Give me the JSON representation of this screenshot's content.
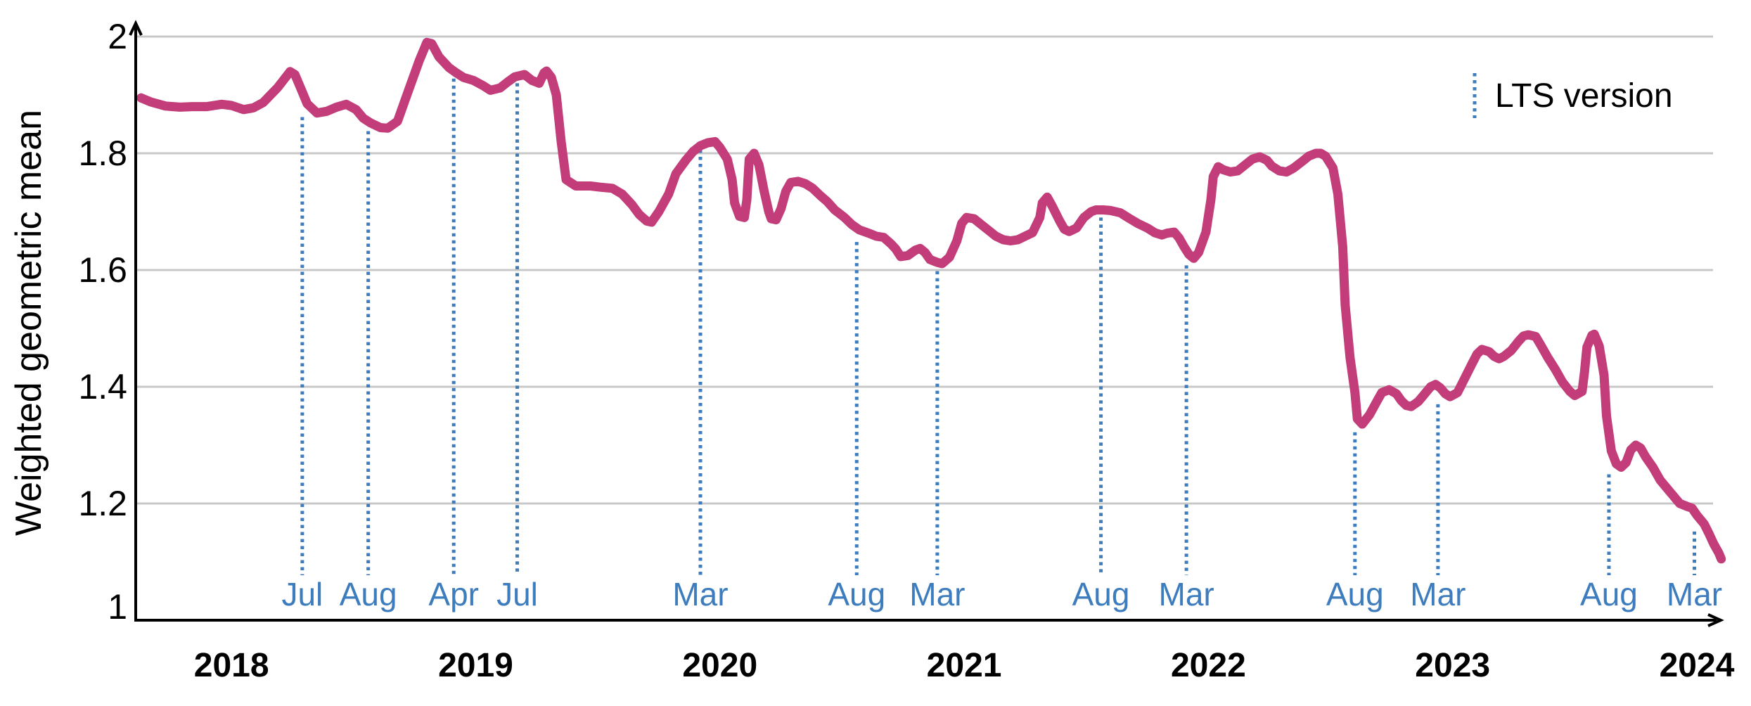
{
  "legend": {
    "label": "LTS version"
  },
  "y_axis": {
    "title": "Weighted geometric mean"
  },
  "colors": {
    "line": "#c23d79",
    "lts_blue": "#3d7cbd",
    "grid": "#c8c8c8",
    "axis": "#000000",
    "text": "#000000"
  },
  "chart_data": {
    "type": "line",
    "title": "",
    "ylabel": "Weighted geometric mean",
    "xlabel": "",
    "grid": "horizontal",
    "legend_position": "top-right",
    "xlim": [
      2017.608,
      2024.095
    ],
    "ylim": [
      1.0,
      2.0193
    ],
    "gridlines_y": [
      1.2,
      1.4,
      1.6,
      1.8,
      2.0
    ],
    "y_ticks": [
      {
        "label": "2",
        "value": 2.0
      },
      {
        "label": "1.8",
        "value": 1.8
      },
      {
        "label": "1.6",
        "value": 1.6
      },
      {
        "label": "1.4",
        "value": 1.4
      },
      {
        "label": "1.2",
        "value": 1.2
      },
      {
        "label": "1",
        "value": 1.0
      }
    ],
    "x_ticks": [
      {
        "label": "2018",
        "x": 2018
      },
      {
        "label": "2019",
        "x": 2019
      },
      {
        "label": "2020",
        "x": 2020
      },
      {
        "label": "2021",
        "x": 2021
      },
      {
        "label": "2022",
        "x": 2022
      },
      {
        "label": "2023",
        "x": 2023
      },
      {
        "label": "2024",
        "x": 2024
      }
    ],
    "lts_markers": [
      {
        "label": "Jul",
        "x": 2018.29,
        "top": 1.862
      },
      {
        "label": "Aug",
        "x": 2018.56,
        "top": 1.838
      },
      {
        "label": "Apr",
        "x": 2018.91,
        "top": 1.928
      },
      {
        "label": "Jul",
        "x": 2019.17,
        "top": 1.92
      },
      {
        "label": "Mar",
        "x": 2019.92,
        "top": 1.806
      },
      {
        "label": "Aug",
        "x": 2020.56,
        "top": 1.648
      },
      {
        "label": "Mar",
        "x": 2020.89,
        "top": 1.598
      },
      {
        "label": "Aug",
        "x": 2021.56,
        "top": 1.69
      },
      {
        "label": "Mar",
        "x": 2021.91,
        "top": 1.608
      },
      {
        "label": "Aug",
        "x": 2022.6,
        "top": 1.322
      },
      {
        "label": "Mar",
        "x": 2022.94,
        "top": 1.37
      },
      {
        "label": "Aug",
        "x": 2023.64,
        "top": 1.25
      },
      {
        "label": "Mar",
        "x": 2023.99,
        "top": 1.152
      }
    ],
    "series": [
      {
        "name": "Weighted geometric mean",
        "points": [
          [
            2017.63,
            1.895
          ],
          [
            2017.67,
            1.888
          ],
          [
            2017.73,
            1.881
          ],
          [
            2017.79,
            1.879
          ],
          [
            2017.84,
            1.88
          ],
          [
            2017.9,
            1.88
          ],
          [
            2017.96,
            1.884
          ],
          [
            2018.0,
            1.882
          ],
          [
            2018.05,
            1.875
          ],
          [
            2018.09,
            1.878
          ],
          [
            2018.13,
            1.887
          ],
          [
            2018.19,
            1.913
          ],
          [
            2018.24,
            1.94
          ],
          [
            2018.26,
            1.935
          ],
          [
            2018.29,
            1.905
          ],
          [
            2018.31,
            1.885
          ],
          [
            2018.35,
            1.869
          ],
          [
            2018.39,
            1.872
          ],
          [
            2018.43,
            1.879
          ],
          [
            2018.47,
            1.884
          ],
          [
            2018.51,
            1.875
          ],
          [
            2018.54,
            1.86
          ],
          [
            2018.57,
            1.852
          ],
          [
            2018.61,
            1.844
          ],
          [
            2018.64,
            1.843
          ],
          [
            2018.68,
            1.855
          ],
          [
            2018.72,
            1.902
          ],
          [
            2018.77,
            1.96
          ],
          [
            2018.8,
            1.99
          ],
          [
            2018.82,
            1.988
          ],
          [
            2018.85,
            1.965
          ],
          [
            2018.89,
            1.947
          ],
          [
            2018.92,
            1.938
          ],
          [
            2018.95,
            1.93
          ],
          [
            2018.99,
            1.925
          ],
          [
            2019.03,
            1.916
          ],
          [
            2019.06,
            1.908
          ],
          [
            2019.1,
            1.912
          ],
          [
            2019.13,
            1.922
          ],
          [
            2019.16,
            1.931
          ],
          [
            2019.2,
            1.935
          ],
          [
            2019.23,
            1.925
          ],
          [
            2019.26,
            1.92
          ],
          [
            2019.28,
            1.938
          ],
          [
            2019.29,
            1.941
          ],
          [
            2019.31,
            1.93
          ],
          [
            2019.33,
            1.9
          ],
          [
            2019.35,
            1.82
          ],
          [
            2019.37,
            1.755
          ],
          [
            2019.41,
            1.744
          ],
          [
            2019.47,
            1.744
          ],
          [
            2019.51,
            1.742
          ],
          [
            2019.56,
            1.74
          ],
          [
            2019.6,
            1.73
          ],
          [
            2019.64,
            1.712
          ],
          [
            2019.67,
            1.695
          ],
          [
            2019.7,
            1.684
          ],
          [
            2019.72,
            1.682
          ],
          [
            2019.75,
            1.7
          ],
          [
            2019.79,
            1.73
          ],
          [
            2019.82,
            1.765
          ],
          [
            2019.86,
            1.788
          ],
          [
            2019.89,
            1.803
          ],
          [
            2019.92,
            1.813
          ],
          [
            2019.95,
            1.818
          ],
          [
            2019.98,
            1.82
          ],
          [
            2020.0,
            1.81
          ],
          [
            2020.03,
            1.79
          ],
          [
            2020.05,
            1.755
          ],
          [
            2020.06,
            1.715
          ],
          [
            2020.08,
            1.692
          ],
          [
            2020.1,
            1.69
          ],
          [
            2020.11,
            1.72
          ],
          [
            2020.12,
            1.79
          ],
          [
            2020.14,
            1.8
          ],
          [
            2020.16,
            1.78
          ],
          [
            2020.18,
            1.737
          ],
          [
            2020.2,
            1.7
          ],
          [
            2020.21,
            1.688
          ],
          [
            2020.23,
            1.686
          ],
          [
            2020.25,
            1.705
          ],
          [
            2020.27,
            1.735
          ],
          [
            2020.29,
            1.75
          ],
          [
            2020.32,
            1.752
          ],
          [
            2020.35,
            1.748
          ],
          [
            2020.38,
            1.74
          ],
          [
            2020.41,
            1.728
          ],
          [
            2020.44,
            1.717
          ],
          [
            2020.47,
            1.703
          ],
          [
            2020.51,
            1.69
          ],
          [
            2020.54,
            1.678
          ],
          [
            2020.57,
            1.669
          ],
          [
            2020.61,
            1.663
          ],
          [
            2020.64,
            1.658
          ],
          [
            2020.67,
            1.656
          ],
          [
            2020.7,
            1.645
          ],
          [
            2020.72,
            1.636
          ],
          [
            2020.74,
            1.623
          ],
          [
            2020.77,
            1.625
          ],
          [
            2020.8,
            1.634
          ],
          [
            2020.82,
            1.637
          ],
          [
            2020.84,
            1.63
          ],
          [
            2020.86,
            1.618
          ],
          [
            2020.89,
            1.613
          ],
          [
            2020.91,
            1.611
          ],
          [
            2020.94,
            1.622
          ],
          [
            2020.97,
            1.65
          ],
          [
            2020.99,
            1.68
          ],
          [
            2021.01,
            1.69
          ],
          [
            2021.04,
            1.688
          ],
          [
            2021.07,
            1.678
          ],
          [
            2021.1,
            1.668
          ],
          [
            2021.13,
            1.658
          ],
          [
            2021.16,
            1.652
          ],
          [
            2021.19,
            1.65
          ],
          [
            2021.22,
            1.652
          ],
          [
            2021.25,
            1.658
          ],
          [
            2021.28,
            1.664
          ],
          [
            2021.31,
            1.69
          ],
          [
            2021.32,
            1.715
          ],
          [
            2021.34,
            1.725
          ],
          [
            2021.36,
            1.71
          ],
          [
            2021.39,
            1.685
          ],
          [
            2021.41,
            1.67
          ],
          [
            2021.43,
            1.666
          ],
          [
            2021.46,
            1.672
          ],
          [
            2021.49,
            1.69
          ],
          [
            2021.52,
            1.7
          ],
          [
            2021.54,
            1.703
          ],
          [
            2021.57,
            1.703
          ],
          [
            2021.6,
            1.702
          ],
          [
            2021.64,
            1.698
          ],
          [
            2021.67,
            1.69
          ],
          [
            2021.71,
            1.68
          ],
          [
            2021.75,
            1.672
          ],
          [
            2021.78,
            1.664
          ],
          [
            2021.81,
            1.66
          ],
          [
            2021.83,
            1.663
          ],
          [
            2021.86,
            1.665
          ],
          [
            2021.88,
            1.655
          ],
          [
            2021.9,
            1.64
          ],
          [
            2021.92,
            1.627
          ],
          [
            2021.94,
            1.62
          ],
          [
            2021.96,
            1.63
          ],
          [
            2021.99,
            1.665
          ],
          [
            2022.01,
            1.72
          ],
          [
            2022.02,
            1.76
          ],
          [
            2022.04,
            1.777
          ],
          [
            2022.06,
            1.772
          ],
          [
            2022.09,
            1.768
          ],
          [
            2022.12,
            1.77
          ],
          [
            2022.15,
            1.78
          ],
          [
            2022.18,
            1.79
          ],
          [
            2022.21,
            1.794
          ],
          [
            2022.24,
            1.788
          ],
          [
            2022.26,
            1.778
          ],
          [
            2022.29,
            1.77
          ],
          [
            2022.32,
            1.768
          ],
          [
            2022.35,
            1.775
          ],
          [
            2022.39,
            1.788
          ],
          [
            2022.41,
            1.795
          ],
          [
            2022.44,
            1.8
          ],
          [
            2022.46,
            1.8
          ],
          [
            2022.48,
            1.795
          ],
          [
            2022.51,
            1.775
          ],
          [
            2022.53,
            1.73
          ],
          [
            2022.55,
            1.64
          ],
          [
            2022.56,
            1.54
          ],
          [
            2022.58,
            1.45
          ],
          [
            2022.6,
            1.39
          ],
          [
            2022.61,
            1.345
          ],
          [
            2022.63,
            1.336
          ],
          [
            2022.66,
            1.352
          ],
          [
            2022.69,
            1.375
          ],
          [
            2022.71,
            1.39
          ],
          [
            2022.74,
            1.395
          ],
          [
            2022.77,
            1.388
          ],
          [
            2022.79,
            1.376
          ],
          [
            2022.81,
            1.368
          ],
          [
            2022.83,
            1.366
          ],
          [
            2022.86,
            1.375
          ],
          [
            2022.89,
            1.39
          ],
          [
            2022.91,
            1.4
          ],
          [
            2022.93,
            1.404
          ],
          [
            2022.95,
            1.398
          ],
          [
            2022.97,
            1.388
          ],
          [
            2022.99,
            1.383
          ],
          [
            2023.02,
            1.39
          ],
          [
            2023.05,
            1.415
          ],
          [
            2023.08,
            1.44
          ],
          [
            2023.1,
            1.456
          ],
          [
            2023.12,
            1.464
          ],
          [
            2023.15,
            1.46
          ],
          [
            2023.17,
            1.452
          ],
          [
            2023.19,
            1.448
          ],
          [
            2023.21,
            1.452
          ],
          [
            2023.24,
            1.462
          ],
          [
            2023.27,
            1.478
          ],
          [
            2023.29,
            1.487
          ],
          [
            2023.31,
            1.489
          ],
          [
            2023.34,
            1.486
          ],
          [
            2023.36,
            1.472
          ],
          [
            2023.39,
            1.45
          ],
          [
            2023.42,
            1.43
          ],
          [
            2023.45,
            1.408
          ],
          [
            2023.48,
            1.392
          ],
          [
            2023.5,
            1.385
          ],
          [
            2023.53,
            1.392
          ],
          [
            2023.54,
            1.425
          ],
          [
            2023.55,
            1.468
          ],
          [
            2023.57,
            1.488
          ],
          [
            2023.58,
            1.49
          ],
          [
            2023.6,
            1.47
          ],
          [
            2023.62,
            1.42
          ],
          [
            2023.63,
            1.35
          ],
          [
            2023.65,
            1.29
          ],
          [
            2023.67,
            1.268
          ],
          [
            2023.69,
            1.262
          ],
          [
            2023.71,
            1.27
          ],
          [
            2023.73,
            1.292
          ],
          [
            2023.75,
            1.3
          ],
          [
            2023.77,
            1.295
          ],
          [
            2023.79,
            1.28
          ],
          [
            2023.82,
            1.262
          ],
          [
            2023.85,
            1.24
          ],
          [
            2023.88,
            1.225
          ],
          [
            2023.91,
            1.21
          ],
          [
            2023.93,
            1.2
          ],
          [
            2023.96,
            1.195
          ],
          [
            2023.98,
            1.192
          ],
          [
            2024.0,
            1.18
          ],
          [
            2024.03,
            1.165
          ],
          [
            2024.05,
            1.148
          ],
          [
            2024.07,
            1.13
          ],
          [
            2024.09,
            1.115
          ],
          [
            2024.1,
            1.105
          ]
        ]
      }
    ]
  }
}
